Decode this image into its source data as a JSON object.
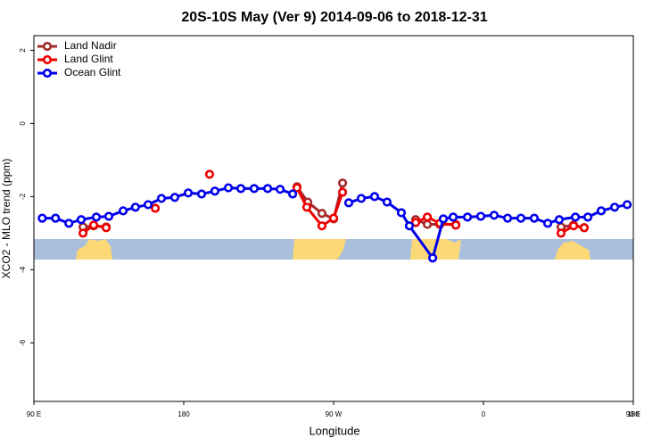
{
  "chart_data": {
    "type": "line",
    "title": "20S-10S May (Ver 9)   2014-09-06 to 2018-12-31",
    "x_label": "Longitude",
    "y_label": "XCO2 - MLO trend (ppm)",
    "xlim": [
      90,
      450
    ],
    "ylim": [
      -7.6,
      2.4
    ],
    "xticks": [
      {
        "value": 90,
        "label": "90 E"
      },
      180,
      {
        "value": 270,
        "label": "90 W"
      },
      0,
      {
        "value": 450,
        "label": "90 E"
      },
      {
        "value": 540,
        "label": "180"
      }
    ],
    "yticks": [
      2,
      0,
      -2,
      -4,
      -6
    ],
    "legend": "top-left",
    "series": [
      {
        "name": "Land Nadir",
        "color": "#a52a2a",
        "x": [
          119.5,
          125.9,
          133.4,
          248,
          254.5,
          263,
          270,
          275.4,
          319.3,
          326.3,
          333.8,
          343.4,
          406.6,
          414.1,
          420.5
        ],
        "values": [
          -2.83,
          -2.8,
          -2.83,
          -1.73,
          -2.15,
          -2.46,
          -2.61,
          -1.63,
          -2.63,
          -2.76,
          -2.76,
          -2.76,
          -2.83,
          -2.78,
          -2.85
        ]
      },
      {
        "name": "Land Glint",
        "color": "#ee0000",
        "x": [
          119.5,
          125.9,
          133.4,
          162.9,
          195.5,
          248,
          253.9,
          263,
          270,
          275.4,
          319.3,
          326.3,
          333.8,
          343.4,
          406.6,
          414.1,
          420.5
        ],
        "values": [
          -3.0,
          -2.78,
          -2.85,
          -2.32,
          -1.39,
          -1.76,
          -2.29,
          -2.8,
          -2.59,
          -1.88,
          -2.71,
          -2.56,
          -2.73,
          -2.78,
          -3.0,
          -2.8,
          -2.85
        ]
      },
      {
        "name": "Ocean Glint",
        "color": "#0000ee",
        "x": [
          95,
          103,
          111,
          118.4,
          127.5,
          135,
          143.6,
          151,
          158.6,
          166.6,
          174.6,
          182.7,
          190.7,
          198.7,
          206.8,
          214.3,
          222.3,
          230.4,
          237.9,
          245.4,
          262,
          279.1,
          286.6,
          294.6,
          302.1,
          310.7,
          315.5,
          329.5,
          335.9,
          341.8,
          350.4,
          358.4,
          366.4,
          374.5,
          382.5,
          390.5,
          398.6,
          405.5,
          415.2,
          422.7,
          430.7,
          438.8,
          446.3
        ],
        "values": [
          -2.59,
          -2.59,
          -2.73,
          -2.63,
          -2.56,
          -2.54,
          -2.39,
          -2.29,
          -2.22,
          -2.05,
          -2.02,
          -1.9,
          -1.93,
          -1.85,
          -1.76,
          -1.78,
          -1.78,
          -1.78,
          -1.8,
          -1.93,
          null,
          -2.17,
          -2.05,
          -2.0,
          -2.15,
          -2.44,
          -2.8,
          -3.68,
          -2.61,
          -2.56,
          -2.56,
          -2.54,
          -2.51,
          -2.59,
          -2.59,
          -2.59,
          -2.73,
          -2.63,
          -2.56,
          -2.56,
          -2.39,
          -2.29,
          -2.22
        ]
      }
    ]
  }
}
